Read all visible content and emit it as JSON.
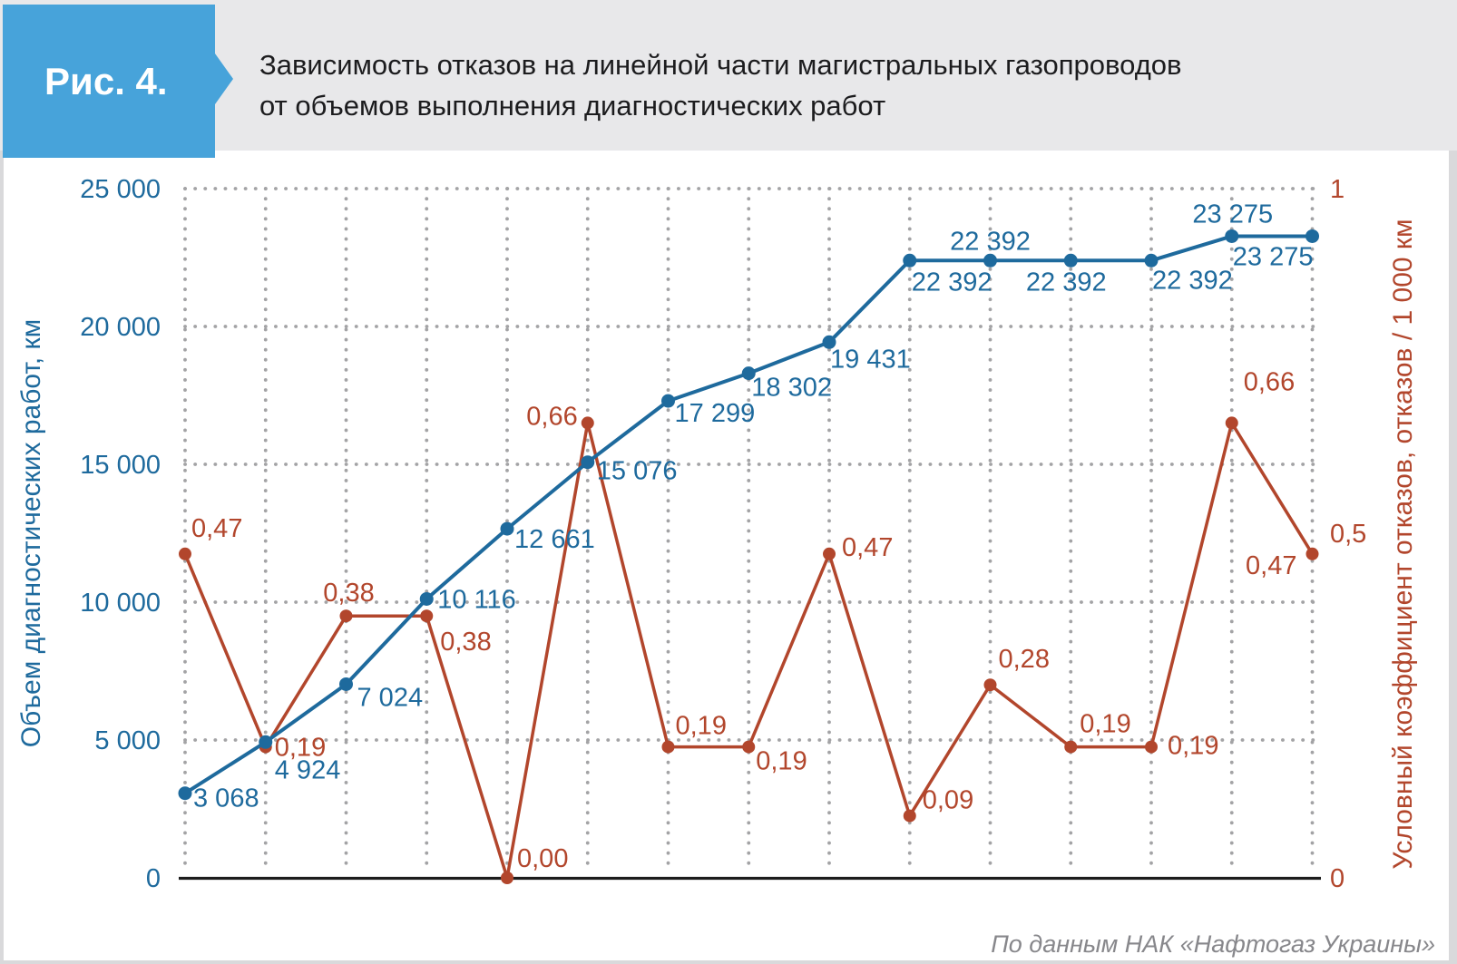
{
  "figure": {
    "tag": "Рис. 4.",
    "title_line1": "Зависимость отказов на линейной части магистральных газопроводов",
    "title_line2": "от объемов выполнения диагностических работ"
  },
  "footer": {
    "source": "По данным НАК «Нафтогаз Украины»"
  },
  "colors": {
    "volume_blue": "#1e6a9d",
    "rate_red": "#b2462c",
    "grid_dot": "#a3a3a5",
    "baseline": "#1c1c1c",
    "tag_blue": "#47a3da",
    "header_gray": "#e8e8ea",
    "title_text": "#1c1c1e",
    "footer_text": "#87878b"
  },
  "chart_data": {
    "type": "line",
    "x_count": 15,
    "grid": "dotted",
    "legend": "none",
    "y_left": {
      "label": "Объем диагностических работ, км",
      "min": 0,
      "max": 25000,
      "ticks": [
        "25 000",
        "20 000",
        "15 000",
        "10 000",
        "5 000",
        "0"
      ]
    },
    "y_right": {
      "label": "Условный коэффициент отказов, отказов / 1 000 км",
      "min": 0,
      "max": 1,
      "ticks": [
        "1",
        "0,5",
        "0"
      ]
    },
    "series": [
      {
        "name": "volume",
        "axis": "left",
        "color": "#1e6a9d",
        "values": [
          3068,
          4924,
          7024,
          10116,
          12661,
          15076,
          17299,
          18302,
          19431,
          22392,
          22392,
          22392,
          22392,
          23275,
          23275
        ],
        "labels": [
          "3 068",
          "4 924",
          "7 024",
          "10 116",
          "12 661",
          "15 076",
          "17 299",
          "18 302",
          "19 431",
          "22 392",
          "22 392",
          "22 392",
          "22 392",
          "23 275",
          "23 275"
        ]
      },
      {
        "name": "rate",
        "axis": "right",
        "color": "#b2462c",
        "values": [
          0.47,
          0.19,
          0.38,
          0.38,
          0.0,
          0.66,
          0.19,
          0.19,
          0.47,
          0.09,
          0.28,
          0.19,
          0.19,
          0.66,
          0.47
        ],
        "labels": [
          "0,47",
          "0,19",
          "0,38",
          "0,38",
          "0,00",
          "0,66",
          "0,19",
          "0,19",
          "0,47",
          "0,09",
          "0,28",
          "0,19",
          "0,19",
          "0,66",
          "0,47"
        ]
      }
    ]
  }
}
